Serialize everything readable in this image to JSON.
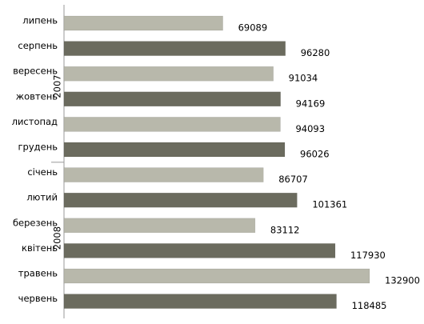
{
  "chart_data": {
    "type": "bar",
    "orientation": "horizontal",
    "groups": [
      {
        "name": "2007",
        "categories": [
          "липень",
          "серпень",
          "вересень",
          "жовтень",
          "листопад",
          "грудень"
        ],
        "values": [
          69089,
          96280,
          91034,
          94169,
          94093,
          96026
        ],
        "colors": [
          "#b8b8ab",
          "#6b6b5e",
          "#b8b8ab",
          "#6b6b5e",
          "#b8b8ab",
          "#6b6b5e"
        ]
      },
      {
        "name": "2008",
        "categories": [
          "січень",
          "лютий",
          "березень",
          "квітень",
          "травень",
          "червень"
        ],
        "values": [
          86707,
          101361,
          83112,
          117930,
          132900,
          118485
        ],
        "colors": [
          "#b8b8ab",
          "#6b6b5e",
          "#b8b8ab",
          "#6b6b5e",
          "#b8b8ab",
          "#6b6b5e"
        ]
      }
    ]
  }
}
